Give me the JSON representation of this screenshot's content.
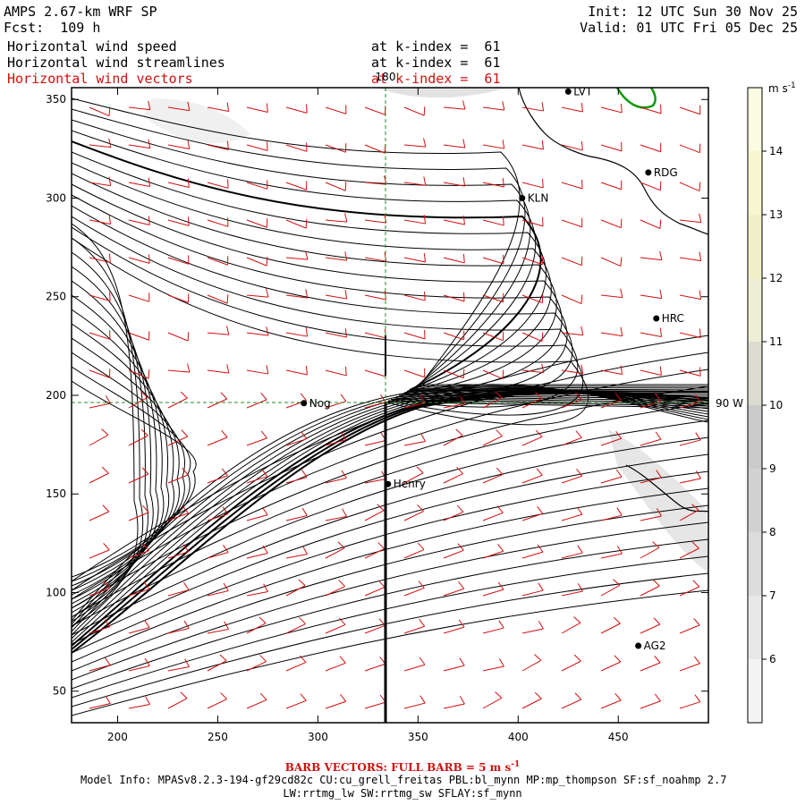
{
  "header": {
    "model": "AMPS 2.67-km WRF SP",
    "fcst_label": "Fcst:",
    "fcst_value": "109 h",
    "init": "Init: 12 UTC Sun 30 Nov 25",
    "valid": "Valid: 01 UTC Fri 05 Dec 25"
  },
  "fields": [
    {
      "name": "Horizontal wind speed",
      "level": "at k-index =  61",
      "color": "#000000"
    },
    {
      "name": "Horizontal wind streamlines",
      "level": "at k-index =  61",
      "color": "#000000"
    },
    {
      "name": "Horizontal wind vectors",
      "level": "at k-index =  61",
      "color": "#d01010"
    }
  ],
  "axes": {
    "x_ticks": [
      "200",
      "250",
      "300",
      "350",
      "400",
      "450"
    ],
    "y_ticks": [
      "50",
      "100",
      "150",
      "200",
      "250",
      "300",
      "350"
    ],
    "x_range": [
      177,
      495
    ],
    "y_range": [
      34,
      356
    ],
    "meridian_label": "180",
    "parallel_label": "90 W"
  },
  "stations": [
    {
      "id": "LVT",
      "x": 425,
      "y": 354
    },
    {
      "id": "RDG",
      "x": 465,
      "y": 313
    },
    {
      "id": "KLN",
      "x": 402,
      "y": 300
    },
    {
      "id": "HRC",
      "x": 469,
      "y": 239
    },
    {
      "id": "Nog",
      "x": 293,
      "y": 196
    },
    {
      "id": "Henry",
      "x": 335,
      "y": 155
    },
    {
      "id": "AG2",
      "x": 460,
      "y": 73
    }
  ],
  "colorbar": {
    "units": "m s",
    "units_exp": "-1",
    "levels": [
      "6",
      "7",
      "8",
      "9",
      "10",
      "11",
      "12",
      "13",
      "14"
    ],
    "colors": [
      "#f4f4f4",
      "#e8e8e8",
      "#dcdcdc",
      "#d2d2d2",
      "#cacaca",
      "#dcdcd0",
      "#eeeed4",
      "#f2f0c8",
      "#f8f6d0",
      "#fcfce2"
    ]
  },
  "footer": {
    "barb_note": "BARB VECTORS:  FULL BARB = 5 m s",
    "barb_exp": "-1",
    "model_info": "Model Info: MPASv8.2.3-194-gf29cd82c CU:cu_grell_freitas PBL:bl_mynn MP:mp_thompson SF:sf_noahmp 2.7",
    "model_info2": "LW:rrtmg_lw SW:rrtmg_sw SFLAY:sf_mynn"
  }
}
